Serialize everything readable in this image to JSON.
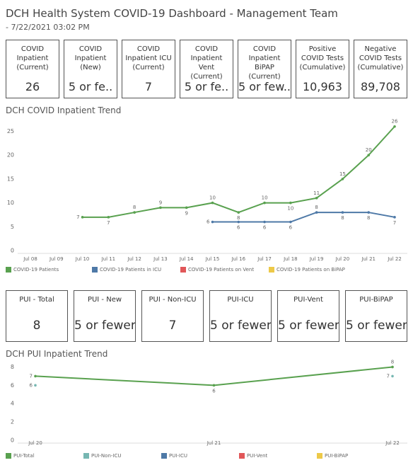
{
  "header": {
    "title": "DCH Health System COVID-19 Dashboard - Management Team",
    "subtitle": "- 7/22/2021 03:02 PM"
  },
  "kpis": [
    {
      "label": "COVID Inpatient (Current)",
      "value": "26"
    },
    {
      "label": "COVID Inpatient (New)",
      "value": "5 or fe.."
    },
    {
      "label": "COVID Inpatient ICU (Current)",
      "value": "7"
    },
    {
      "label": "COVID Inpatient Vent (Current)",
      "value": "5 or fe.."
    },
    {
      "label": "COVID Inpatient BiPAP (Current)",
      "value": "5 or few..."
    },
    {
      "label": "Positive COVID Tests (Cumulative)",
      "value": "10,963"
    },
    {
      "label": "Negative COVID Tests (Cumulative)",
      "value": "89,708"
    }
  ],
  "pui_kpis": [
    {
      "label": "PUI - Total",
      "value": "8"
    },
    {
      "label": "PUI - New",
      "value": "5 or fewer"
    },
    {
      "label": "PUI - Non-ICU",
      "value": "7"
    },
    {
      "label": "PUI-ICU",
      "value": "5 or fewer"
    },
    {
      "label": "PUI-Vent",
      "value": "5 or fewer"
    },
    {
      "label": "PUI-BiPAP",
      "value": "5 or fewer"
    }
  ],
  "chart_data": [
    {
      "type": "line",
      "title": "DCH COVID Inpatient Trend",
      "categories": [
        "Jul 08",
        "Jul 09",
        "Jul 10",
        "Jul 11",
        "Jul 12",
        "Jul 13",
        "Jul 14",
        "Jul 15",
        "Jul 16",
        "Jul 17",
        "Jul 18",
        "Jul 19",
        "Jul 20",
        "Jul 21",
        "Jul 22"
      ],
      "series": [
        {
          "name": "COVID-19 Patients",
          "color": "#59a14f",
          "values": [
            null,
            null,
            7,
            7,
            8,
            9,
            9,
            10,
            8,
            10,
            10,
            11,
            15,
            20,
            26
          ]
        },
        {
          "name": "COVID-19 Patients in ICU",
          "color": "#4e79a7",
          "values": [
            null,
            null,
            null,
            null,
            null,
            null,
            null,
            6,
            6,
            6,
            6,
            8,
            8,
            8,
            7
          ]
        },
        {
          "name": "COVID-19 Patients on Vent",
          "color": "#e15759",
          "values": [
            null,
            null,
            null,
            null,
            null,
            null,
            null,
            null,
            null,
            null,
            null,
            null,
            null,
            null,
            null
          ]
        },
        {
          "name": "COVID-19 Patients on BiPAP",
          "color": "#edc948",
          "values": [
            null,
            null,
            null,
            null,
            null,
            null,
            null,
            null,
            null,
            null,
            null,
            null,
            null,
            null,
            null
          ]
        }
      ],
      "ylim": [
        0,
        27
      ],
      "yticks": [
        0,
        5,
        10,
        15,
        20,
        25
      ],
      "grid": false
    },
    {
      "type": "line",
      "title": "DCH PUI Inpatient Trend",
      "categories": [
        "Jul 20",
        "Jul 21",
        "Jul 22"
      ],
      "series": [
        {
          "name": "PUI-Total",
          "color": "#59a14f",
          "values": [
            7,
            6,
            8
          ]
        },
        {
          "name": "PUI-Non-ICU",
          "color": "#76b7b2",
          "values": [
            6,
            null,
            7
          ]
        },
        {
          "name": "PUI-ICU",
          "color": "#4e79a7",
          "values": [
            null,
            null,
            null
          ]
        },
        {
          "name": "PUI-Vent",
          "color": "#e15759",
          "values": [
            null,
            null,
            null
          ]
        },
        {
          "name": "PUI-BiPAP",
          "color": "#edc948",
          "values": [
            null,
            null,
            null
          ]
        }
      ],
      "ylim": [
        0,
        8.5
      ],
      "yticks": [
        0,
        2,
        4,
        6,
        8
      ],
      "grid": false
    }
  ]
}
